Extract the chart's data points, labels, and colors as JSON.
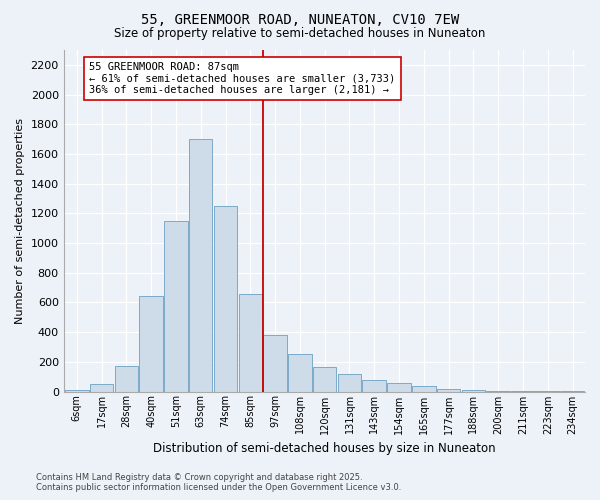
{
  "title": "55, GREENMOOR ROAD, NUNEATON, CV10 7EW",
  "subtitle": "Size of property relative to semi-detached houses in Nuneaton",
  "xlabel": "Distribution of semi-detached houses by size in Nuneaton",
  "ylabel": "Number of semi-detached properties",
  "bar_color": "#cddce8",
  "bar_edge_color": "#7aaac8",
  "background_color": "#edf2f8",
  "grid_color": "#d8e4f0",
  "annotation_text": "55 GREENMOOR ROAD: 87sqm\n← 61% of semi-detached houses are smaller (3,733)\n36% of semi-detached houses are larger (2,181) →",
  "vline_color": "#cc0000",
  "categories": [
    "6sqm",
    "17sqm",
    "28sqm",
    "40sqm",
    "51sqm",
    "63sqm",
    "74sqm",
    "85sqm",
    "97sqm",
    "108sqm",
    "120sqm",
    "131sqm",
    "143sqm",
    "154sqm",
    "165sqm",
    "177sqm",
    "188sqm",
    "200sqm",
    "211sqm",
    "223sqm",
    "234sqm"
  ],
  "bar_heights": [
    10,
    50,
    170,
    640,
    1150,
    1700,
    1250,
    660,
    380,
    250,
    165,
    120,
    75,
    55,
    35,
    20,
    10,
    5,
    2,
    2,
    2
  ],
  "ylim": [
    0,
    2300
  ],
  "yticks": [
    0,
    200,
    400,
    600,
    800,
    1000,
    1200,
    1400,
    1600,
    1800,
    2000,
    2200
  ],
  "footer_line1": "Contains HM Land Registry data © Crown copyright and database right 2025.",
  "footer_line2": "Contains public sector information licensed under the Open Government Licence v3.0."
}
